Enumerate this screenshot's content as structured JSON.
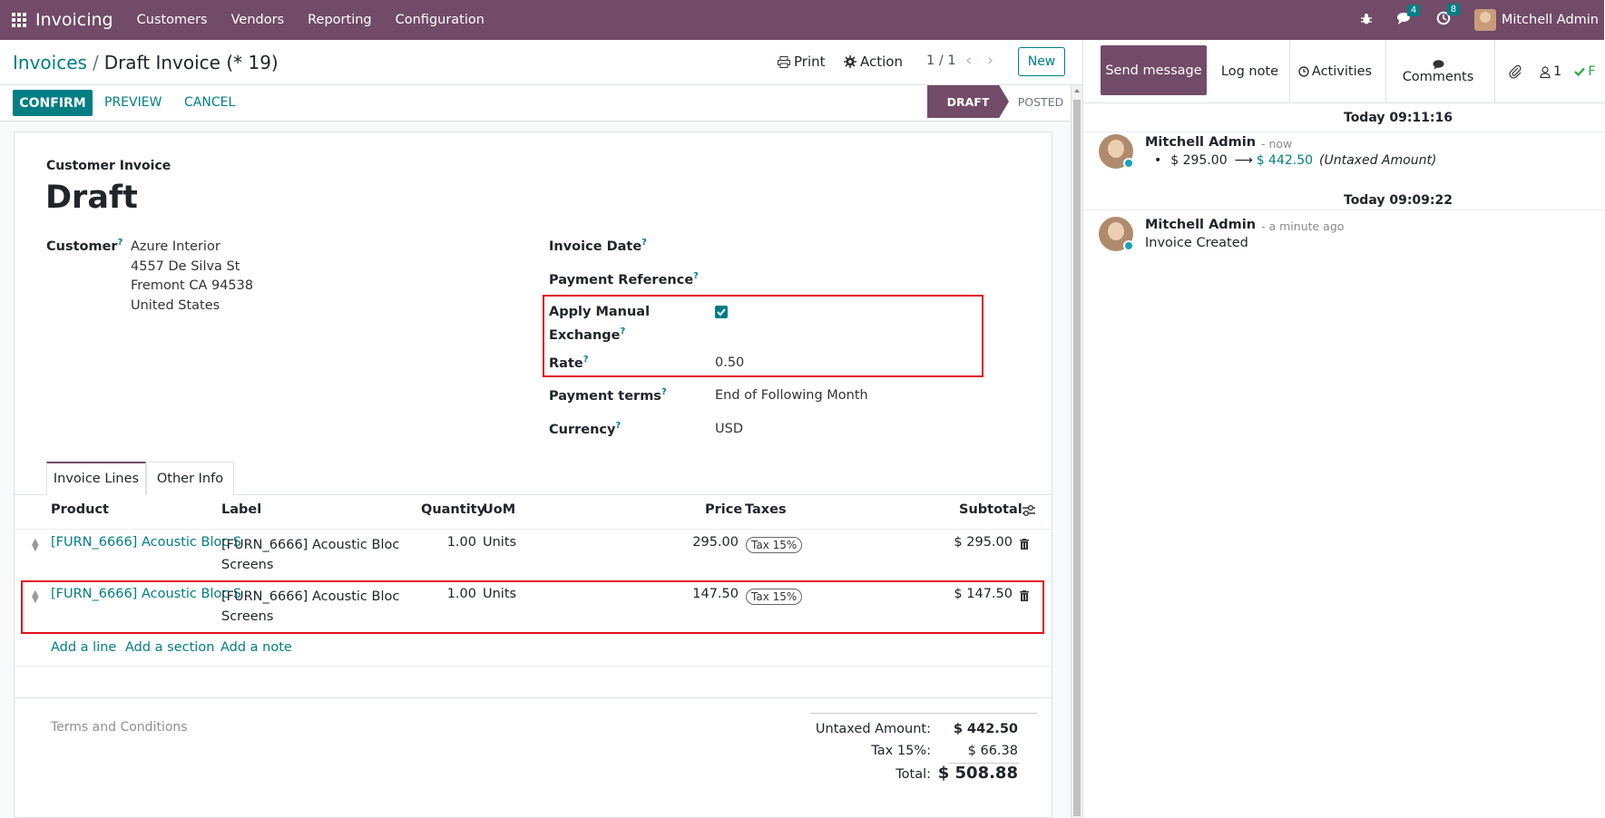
{
  "navbar": {
    "brand": "Invoicing",
    "menus": [
      "Customers",
      "Vendors",
      "Reporting",
      "Configuration"
    ],
    "messages_count": "4",
    "activities_count": "8",
    "user": "Mitchell Admin"
  },
  "breadcrumb": {
    "parent": "Invoices",
    "separator": "/",
    "current": "Draft Invoice (* 19)"
  },
  "control_panel": {
    "print": "Print",
    "action": "Action",
    "pager": "1 / 1",
    "new": "New"
  },
  "statusbar": {
    "confirm": "CONFIRM",
    "preview": "PREVIEW",
    "cancel": "CANCEL",
    "stages": [
      "DRAFT",
      "POSTED"
    ],
    "active_stage": "DRAFT"
  },
  "form": {
    "doc_type": "Customer Invoice",
    "title": "Draft",
    "customer_label": "Customer",
    "customer": [
      "Azure Interior",
      "4557 De Silva St",
      "Fremont CA 94538",
      "United States"
    ],
    "invoice_date_label": "Invoice Date",
    "payment_ref_label": "Payment Reference",
    "manual_exchange_label_1": "Apply Manual",
    "manual_exchange_label_2": "Exchange",
    "manual_exchange_checked": true,
    "rate_label": "Rate",
    "rate": "0.50",
    "payment_terms_label": "Payment terms",
    "payment_terms": "End of Following Month",
    "currency_label": "Currency",
    "currency": "USD",
    "help_mark": "?"
  },
  "tabs": [
    "Invoice Lines",
    "Other Info"
  ],
  "lines": {
    "headers": {
      "product": "Product",
      "label": "Label",
      "quantity": "Quantity",
      "uom": "UoM",
      "price": "Price",
      "taxes": "Taxes",
      "subtotal": "Subtotal"
    },
    "rows": [
      {
        "product": "[FURN_6666] Acoustic Bloc S",
        "label_1": "[FURN_6666] Acoustic Bloc",
        "label_2": "Screens",
        "quantity": "1.00",
        "uom": "Units",
        "price": "295.00",
        "tax": "Tax 15%",
        "subtotal": "$ 295.00"
      },
      {
        "product": "[FURN_6666] Acoustic Bloc S",
        "label_1": "[FURN_6666] Acoustic Bloc",
        "label_2": "Screens",
        "quantity": "1.00",
        "uom": "Units",
        "price": "147.50",
        "tax": "Tax 15%",
        "subtotal": "$ 147.50"
      }
    ],
    "add_line": "Add a line",
    "add_section": "Add a section",
    "add_note": "Add a note"
  },
  "terms_placeholder": "Terms and Conditions",
  "totals": {
    "untaxed_label": "Untaxed Amount:",
    "untaxed": "$ 442.50",
    "tax_label": "Tax 15%:",
    "tax": "$ 66.38",
    "total_label": "Total:",
    "total": "$ 508.88"
  },
  "chatter": {
    "send_message": "Send message",
    "log_note": "Log note",
    "activities": "Activities",
    "comments": "Comments",
    "followers": "1",
    "messages": [
      {
        "date": "Today 09:11:16",
        "author": "Mitchell Admin",
        "when": "- now",
        "old_value": "$ 295.00",
        "arrow": "⟶",
        "new_value": "$ 442.50",
        "field": "(Untaxed Amount)"
      },
      {
        "date": "Today 09:09:22",
        "author": "Mitchell Admin",
        "when": "- a minute ago",
        "body": "Invoice Created"
      }
    ]
  },
  "colors": {
    "brand": "#714b67",
    "accent": "#017e84",
    "highlight": "#e0101a"
  }
}
